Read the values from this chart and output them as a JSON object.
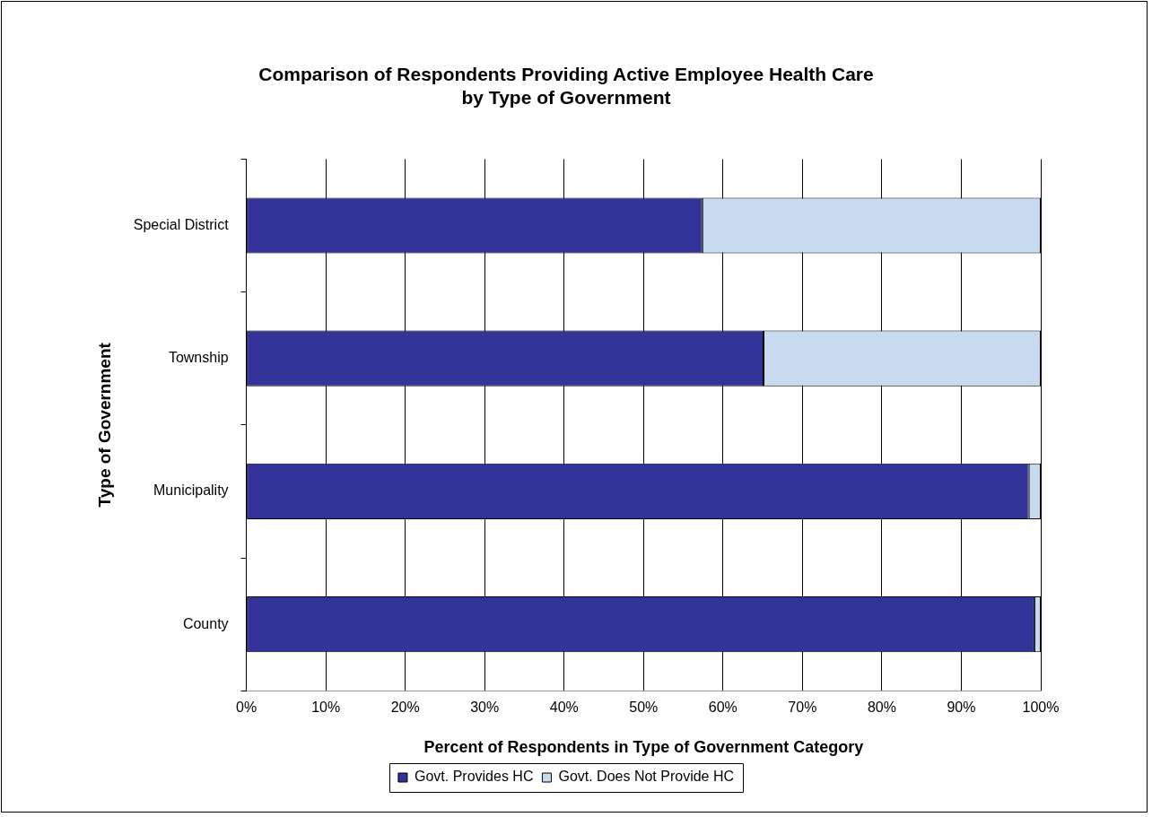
{
  "chart_data": {
    "type": "bar",
    "orientation": "horizontal",
    "stacked": true,
    "title": "Comparison of Respondents Providing Active Employee Health Care\nby Type of Government",
    "xlabel": "Percent of Respondents in Type of Government Category",
    "ylabel": "Type of Government",
    "categories": [
      "Special District",
      "Township",
      "Municipality",
      "County"
    ],
    "series": [
      {
        "name": "Govt. Provides HC",
        "color": "#333399",
        "values": [
          57.4,
          65.1,
          98.5,
          99.2
        ]
      },
      {
        "name": "Govt. Does Not Provide HC",
        "color": "#c8daf0",
        "values": [
          42.6,
          34.9,
          1.5,
          0.8
        ]
      }
    ],
    "xlim": [
      0,
      100
    ],
    "xticks": [
      {
        "value": 0,
        "label": "0%"
      },
      {
        "value": 10,
        "label": "10%"
      },
      {
        "value": 20,
        "label": "20%"
      },
      {
        "value": 30,
        "label": "30%"
      },
      {
        "value": 40,
        "label": "40%"
      },
      {
        "value": 50,
        "label": "50%"
      },
      {
        "value": 60,
        "label": "60%"
      },
      {
        "value": 70,
        "label": "70%"
      },
      {
        "value": 80,
        "label": "80%"
      },
      {
        "value": 90,
        "label": "90%"
      },
      {
        "value": 100,
        "label": "100%"
      }
    ],
    "grid": "x",
    "legend": "bottom"
  }
}
